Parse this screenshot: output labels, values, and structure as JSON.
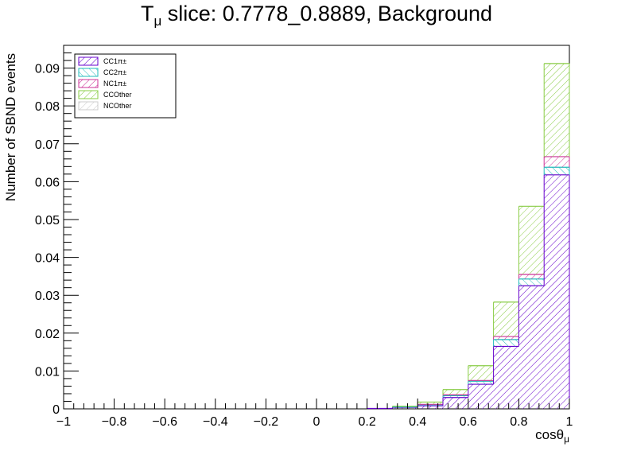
{
  "title": {
    "prefix": "T",
    "sub": "μ",
    "rest": " slice: 0.7778_0.8889, Background"
  },
  "xlabel": {
    "main": "cosθ",
    "sub": "μ"
  },
  "ylabel": "Number of SBND events",
  "chart_data": {
    "type": "bar",
    "stacked": true,
    "x_edges": [
      -1,
      -0.9,
      -0.8,
      -0.7,
      -0.6,
      -0.5,
      -0.4,
      -0.3,
      -0.2,
      -0.1,
      0,
      0.1,
      0.2,
      0.3,
      0.4,
      0.5,
      0.6,
      0.7,
      0.8,
      0.9,
      1
    ],
    "xlim": [
      -1,
      1
    ],
    "ylim": [
      0,
      0.096
    ],
    "x_ticks": [
      -1,
      -0.8,
      -0.6,
      -0.4,
      -0.2,
      0,
      0.2,
      0.4,
      0.6,
      0.8,
      1
    ],
    "x_tick_labels": [
      "−1",
      "−0.8",
      "−0.6",
      "−0.4",
      "−0.2",
      "0",
      "0.2",
      "0.4",
      "0.6",
      "0.8",
      "1"
    ],
    "y_ticks": [
      0,
      0.01,
      0.02,
      0.03,
      0.04,
      0.05,
      0.06,
      0.07,
      0.08,
      0.09
    ],
    "y_tick_labels": [
      "0",
      "0.01",
      "0.02",
      "0.03",
      "0.04",
      "0.05",
      "0.06",
      "0.07",
      "0.08",
      "0.09"
    ],
    "legend_position": "top-left",
    "series": [
      {
        "name": "CC1π±",
        "color": "#6600cc",
        "values": [
          0,
          0,
          0,
          0,
          0,
          0,
          0,
          0,
          0,
          0,
          0,
          0,
          0.0001,
          0.0004,
          0.0008,
          0.003,
          0.0065,
          0.0165,
          0.0325,
          0.0618
        ]
      },
      {
        "name": "CC2π±",
        "color": "#22bbbb",
        "values": [
          0,
          0,
          0,
          0,
          0,
          0,
          0,
          0,
          0,
          0,
          0,
          0,
          0,
          0.0001,
          0.0003,
          0.0005,
          0.0008,
          0.0018,
          0.0018,
          0.002
        ]
      },
      {
        "name": "NC1π±",
        "color": "#cc3399",
        "values": [
          0,
          0,
          0,
          0,
          0,
          0,
          0,
          0,
          0,
          0,
          0,
          0,
          0,
          0,
          0.0001,
          0.0002,
          0.0002,
          0.0008,
          0.0012,
          0.0028
        ]
      },
      {
        "name": "CCOther",
        "color": "#88cc44",
        "values": [
          0,
          0,
          0,
          0,
          0,
          0,
          0,
          0,
          0,
          0,
          0,
          0,
          0,
          0.0002,
          0.0006,
          0.0014,
          0.0039,
          0.0091,
          0.018,
          0.0246
        ]
      },
      {
        "name": "NCOther",
        "color": "#cccccc",
        "values": [
          0,
          0,
          0,
          0,
          0,
          0,
          0,
          0,
          0,
          0,
          0,
          0,
          0,
          0,
          0,
          0,
          0,
          0,
          0,
          0
        ]
      }
    ]
  }
}
